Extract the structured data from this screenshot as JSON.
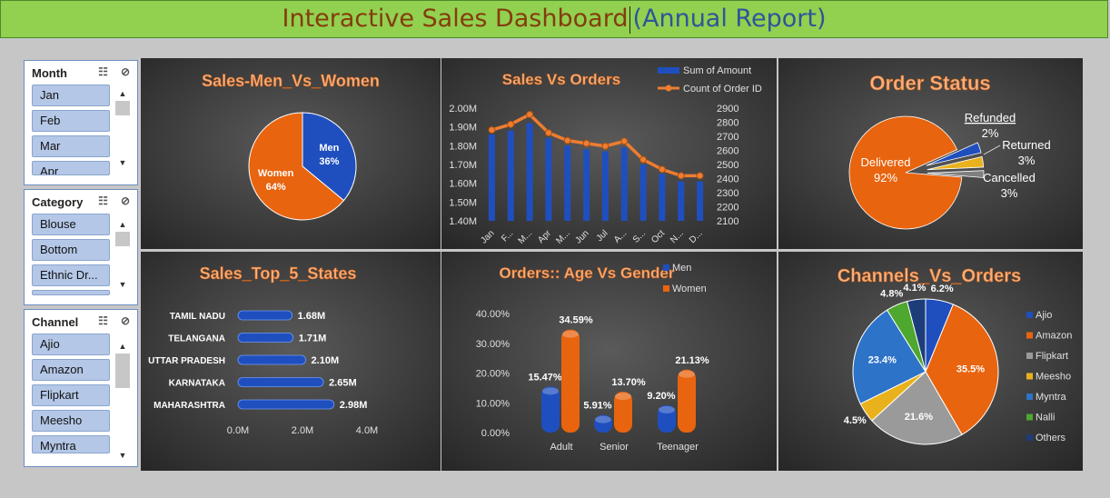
{
  "title": {
    "main": "Interactive Sales Dashboard",
    "sub_open": "(",
    "sub": "Annual Report",
    "sub_close": ")"
  },
  "slicers": [
    {
      "name": "Month",
      "items": [
        "Jan",
        "Feb",
        "Mar",
        "Apr"
      ]
    },
    {
      "name": "Category",
      "items": [
        "Blouse",
        "Bottom",
        "Ethnic Dr..."
      ]
    },
    {
      "name": "Channel",
      "items": [
        "Ajio",
        "Amazon",
        "Flipkart",
        "Meesho",
        "Myntra"
      ]
    }
  ],
  "chart_data": [
    {
      "id": "men_women",
      "type": "pie",
      "title": "Sales-Men_Vs_Women",
      "slices": [
        {
          "name": "Men",
          "label": "36%",
          "value": 36,
          "color": "#1f4fbf"
        },
        {
          "name": "Women",
          "label": "64%",
          "value": 64,
          "color": "#e8640f"
        }
      ]
    },
    {
      "id": "sales_orders",
      "type": "line",
      "title": "Sales Vs Orders",
      "categories": [
        "Jan",
        "F...",
        "M...",
        "Apr",
        "M...",
        "Jun",
        "Jul",
        "A...",
        "S...",
        "Oct",
        "N...",
        "D..."
      ],
      "series": [
        {
          "name": "Sum of Amount",
          "type": "bar",
          "axis": "left",
          "color": "#1f4fbf",
          "values": [
            1.86,
            1.88,
            1.92,
            1.84,
            1.8,
            1.78,
            1.77,
            1.79,
            1.7,
            1.65,
            1.61,
            1.61
          ]
        },
        {
          "name": "Count of Order ID",
          "type": "line",
          "axis": "right",
          "color": "#ed7d31",
          "values": [
            2745,
            2785,
            2855,
            2725,
            2670,
            2650,
            2630,
            2665,
            2535,
            2465,
            2420,
            2420
          ]
        }
      ],
      "y_left": {
        "ticks": [
          "2.00M",
          "1.90M",
          "1.80M",
          "1.70M",
          "1.60M",
          "1.50M",
          "1.40M"
        ],
        "min": 1.4,
        "max": 2.0
      },
      "y_right": {
        "ticks": [
          "2900",
          "2800",
          "2700",
          "2600",
          "2500",
          "2400",
          "2300",
          "2200",
          "2100"
        ],
        "min": 2100,
        "max": 2900
      },
      "legend": "top-right"
    },
    {
      "id": "order_status",
      "type": "pie",
      "title": "Order Status",
      "slices": [
        {
          "name": "Delivered",
          "label": "92%",
          "value": 92,
          "color": "#e8640f"
        },
        {
          "name": "Cancelled",
          "label": "3%",
          "value": 3,
          "color": "#1f4fbf"
        },
        {
          "name": "Returned",
          "label": "3%",
          "value": 3,
          "color": "#e9b21c"
        },
        {
          "name": "Refunded",
          "label": "2%",
          "value": 2,
          "color": "#7f7f7f"
        }
      ]
    },
    {
      "id": "top_states",
      "type": "bar",
      "orientation": "horizontal",
      "title": "Sales_Top_5_States",
      "categories": [
        "TAMIL NADU",
        "TELANGANA",
        "UTTAR PRADESH",
        "KARNATAKA",
        "MAHARASHTRA"
      ],
      "values": [
        1.68,
        1.71,
        2.1,
        2.65,
        2.98
      ],
      "labels": [
        "1.68M",
        "1.71M",
        "2.10M",
        "2.65M",
        "2.98M"
      ],
      "x_ticks": [
        "0.0M",
        "2.0M",
        "4.0M"
      ],
      "xlim": [
        0,
        4
      ]
    },
    {
      "id": "age_gender",
      "type": "bar",
      "title": "Orders:: Age Vs Gender",
      "categories": [
        "Adult",
        "Senior",
        "Teenager"
      ],
      "series": [
        {
          "name": "Men",
          "color": "#1f4fbf",
          "values": [
            15.47,
            5.91,
            9.2
          ],
          "labels": [
            "15.47%",
            "5.91%",
            "9.20%"
          ]
        },
        {
          "name": "Women",
          "color": "#e8640f",
          "values": [
            34.59,
            13.7,
            21.13
          ],
          "labels": [
            "34.59%",
            "13.70%",
            "21.13%"
          ]
        }
      ],
      "y_ticks": [
        "40.00%",
        "30.00%",
        "20.00%",
        "10.00%",
        "0.00%"
      ],
      "ylim": [
        0,
        40
      ]
    },
    {
      "id": "channels",
      "type": "pie",
      "title": "Channels_Vs_Orders",
      "slices": [
        {
          "name": "Ajio",
          "label": "6.2%",
          "value": 6.2,
          "color": "#1f4fbf"
        },
        {
          "name": "Amazon",
          "label": "35.5%",
          "value": 35.5,
          "color": "#e8640f"
        },
        {
          "name": "Flipkart",
          "label": "21.6%",
          "value": 21.6,
          "color": "#9a9a9a"
        },
        {
          "name": "Meesho",
          "label": "4.5%",
          "value": 4.5,
          "color": "#e9b21c"
        },
        {
          "name": "Myntra",
          "label": "23.4%",
          "value": 23.4,
          "color": "#2d73c8"
        },
        {
          "name": "Nalli",
          "label": "4.8%",
          "value": 4.8,
          "color": "#4ea72e"
        },
        {
          "name": "Others",
          "label": "4.1%",
          "value": 4.1,
          "color": "#1c3d7a"
        }
      ],
      "legend": "right"
    }
  ]
}
